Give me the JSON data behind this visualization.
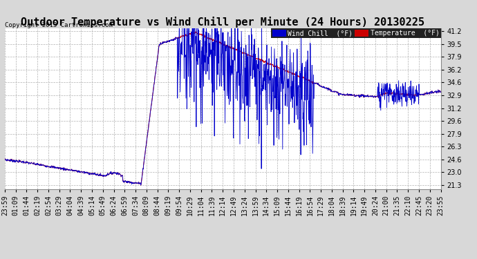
{
  "title": "Outdoor Temperature vs Wind Chill per Minute (24 Hours) 20130225",
  "copyright": "Copyright 2013 Cartronics.com",
  "legend_wind_chill": "Wind Chill  (°F)",
  "legend_temp": "Temperature  (°F)",
  "ylim": [
    21.3,
    41.2
  ],
  "yticks": [
    21.3,
    23.0,
    24.6,
    26.3,
    27.9,
    29.6,
    31.2,
    32.9,
    34.6,
    36.2,
    37.9,
    39.5,
    41.2
  ],
  "bg_color": "#d8d8d8",
  "plot_bg_color": "#ffffff",
  "wind_chill_color": "#0000cc",
  "temp_color": "#cc0000",
  "title_fontsize": 11,
  "tick_fontsize": 7,
  "x_tick_labels": [
    "23:59",
    "01:09",
    "01:44",
    "02:19",
    "02:54",
    "03:29",
    "04:04",
    "04:39",
    "05:14",
    "05:49",
    "06:24",
    "06:59",
    "07:34",
    "08:09",
    "08:44",
    "09:19",
    "09:54",
    "10:29",
    "11:04",
    "11:39",
    "12:14",
    "12:49",
    "13:24",
    "13:59",
    "14:34",
    "15:09",
    "15:44",
    "16:19",
    "16:54",
    "17:29",
    "18:04",
    "18:39",
    "19:14",
    "19:49",
    "20:24",
    "21:00",
    "21:35",
    "22:10",
    "22:45",
    "23:20",
    "23:55"
  ]
}
